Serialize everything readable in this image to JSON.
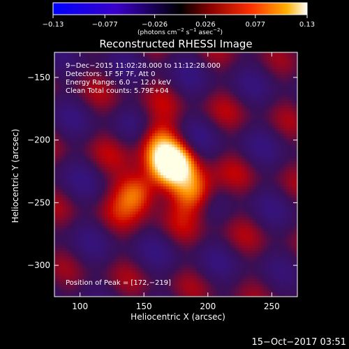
{
  "chart_data": {
    "type": "heatmap",
    "title": "Reconstructed RHESSI Image",
    "xlabel": "Heliocentric X (arcsec)",
    "ylabel": "Heliocentric Y (arcsec)",
    "xlim": [
      80,
      270
    ],
    "ylim": [
      -325,
      -130
    ],
    "x_ticks": [
      100,
      150,
      200,
      250
    ],
    "x_tick_labels": [
      "100",
      "150",
      "200",
      "250"
    ],
    "y_ticks": [
      -150,
      -200,
      -250,
      -300
    ],
    "y_tick_labels": [
      "−150",
      "−200",
      "−250",
      "−300"
    ],
    "colorscale": "red-temperature with blue negatives",
    "colorbar": {
      "range": [
        -0.13,
        0.13
      ],
      "tick_values": [
        -0.13,
        -0.077,
        -0.026,
        0.026,
        0.077,
        0.13
      ],
      "tick_labels": [
        "−0.13",
        "−0.077",
        "−0.026",
        "0.026",
        "0.077",
        "0.13"
      ],
      "units_main": "(photons cm",
      "units_sup1": "−2",
      "units_mid": " s",
      "units_sup2": "−1",
      "units_mid2": " asec",
      "units_sup3": "−2",
      "units_end": ")"
    },
    "info_lines": [
      "9−Dec−2015 11:02:28.000 to 11:12:28.000",
      "Detectors: 1F 5F 7F, Att 0",
      "Energy Range: 6.0 − 12.0 keV",
      "Clean     Total counts: 5.79E+04"
    ],
    "peak_label": "Position of Peak = [172,−219]",
    "peak_position": [
      172,
      -219
    ],
    "sources": [
      {
        "x": 172,
        "y": -219,
        "intensity": 0.13
      },
      {
        "x": 145,
        "y": -242,
        "intensity": 0.11
      },
      {
        "x": 190,
        "y": -242,
        "intensity": 0.1
      },
      {
        "x": 160,
        "y": -200,
        "intensity": 0.07
      }
    ]
  },
  "footer": {
    "timestamp": "15−Oct−2017 03:51"
  },
  "colors": {
    "background": "#000000",
    "text": "#ffffff",
    "negative": "#3020ff",
    "zero": "#000000",
    "peak": "#ffffff"
  }
}
